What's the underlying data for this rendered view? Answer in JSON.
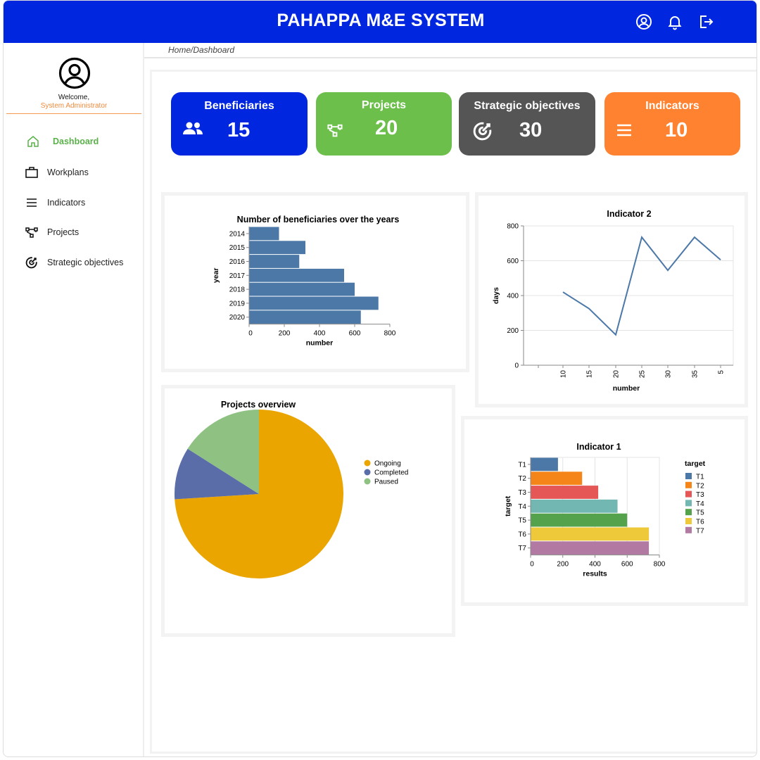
{
  "app": {
    "title": "PAHAPPA M&E SYSTEM"
  },
  "header_icons": [
    "user-circle-icon",
    "bell-icon",
    "logout-icon"
  ],
  "user": {
    "greeting": "Welcome,",
    "role": "System Administrator"
  },
  "breadcrumb": "Home/Dashboard",
  "sidebar": {
    "items": [
      {
        "label": "Dashboard",
        "icon": "home-icon",
        "active": true
      },
      {
        "label": "Workplans",
        "icon": "briefcase-icon",
        "active": false
      },
      {
        "label": "Indicators",
        "icon": "menu-lines-icon",
        "active": false
      },
      {
        "label": "Projects",
        "icon": "network-icon",
        "active": false
      },
      {
        "label": "Strategic objectives",
        "icon": "target-icon",
        "active": false
      }
    ]
  },
  "cards": [
    {
      "label": "Beneficiaries",
      "value": "15",
      "color": "#0026e0",
      "icon": "users-icon"
    },
    {
      "label": "Projects",
      "value": "20",
      "color": "#6cbf4a",
      "icon": "network-icon"
    },
    {
      "label": "Strategic objectives",
      "value": "30",
      "color": "#555555",
      "icon": "target-icon"
    },
    {
      "label": "Indicators",
      "value": "10",
      "color": "#ff8230",
      "icon": "menu-lines-icon"
    }
  ],
  "chart_data": [
    {
      "type": "bar",
      "orientation": "horizontal",
      "title": "Number of beneficiaries over the years",
      "xlabel": "number",
      "ylabel": "year",
      "categories": [
        "2014",
        "2015",
        "2016",
        "2017",
        "2018",
        "2019",
        "2020"
      ],
      "values": [
        170,
        320,
        285,
        540,
        600,
        735,
        635
      ],
      "xlim": [
        0,
        800
      ],
      "xticks": [
        "0",
        "200",
        "400",
        "600",
        "800"
      ],
      "color": "#4c78a8"
    },
    {
      "type": "line",
      "title": "Indicator 2",
      "xlabel": "number",
      "ylabel": "days",
      "x": [
        "10",
        "15",
        "20",
        "25",
        "30",
        "35",
        "5"
      ],
      "values": [
        420,
        325,
        175,
        735,
        545,
        735,
        605
      ],
      "ylim": [
        0,
        800
      ],
      "yticks": [
        "0",
        "200",
        "400",
        "600",
        "800"
      ],
      "grid": true,
      "color": "#4c78a8"
    },
    {
      "type": "pie",
      "title": "Projects overview",
      "legend": "right",
      "slices": [
        {
          "name": "Ongoing",
          "value": 74,
          "color": "#eba500"
        },
        {
          "name": "Completed",
          "value": 10,
          "color": "#5a6da8"
        },
        {
          "name": "Paused",
          "value": 16,
          "color": "#8fc183"
        }
      ]
    },
    {
      "type": "bar",
      "orientation": "horizontal",
      "title": "Indicator 1",
      "xlabel": "results",
      "ylabel": "target",
      "legend_title": "target",
      "legend": "right",
      "categories": [
        "T1",
        "T2",
        "T3",
        "T4",
        "T5",
        "T6",
        "T7"
      ],
      "values": [
        170,
        320,
        420,
        540,
        600,
        735,
        735
      ],
      "colors": [
        "#4c78a8",
        "#f58518",
        "#e45756",
        "#72b7b2",
        "#54a24b",
        "#eeca3b",
        "#b279a2"
      ],
      "xlim": [
        0,
        800
      ],
      "xticks": [
        "0",
        "200",
        "400",
        "600",
        "800"
      ],
      "grid": true
    }
  ]
}
